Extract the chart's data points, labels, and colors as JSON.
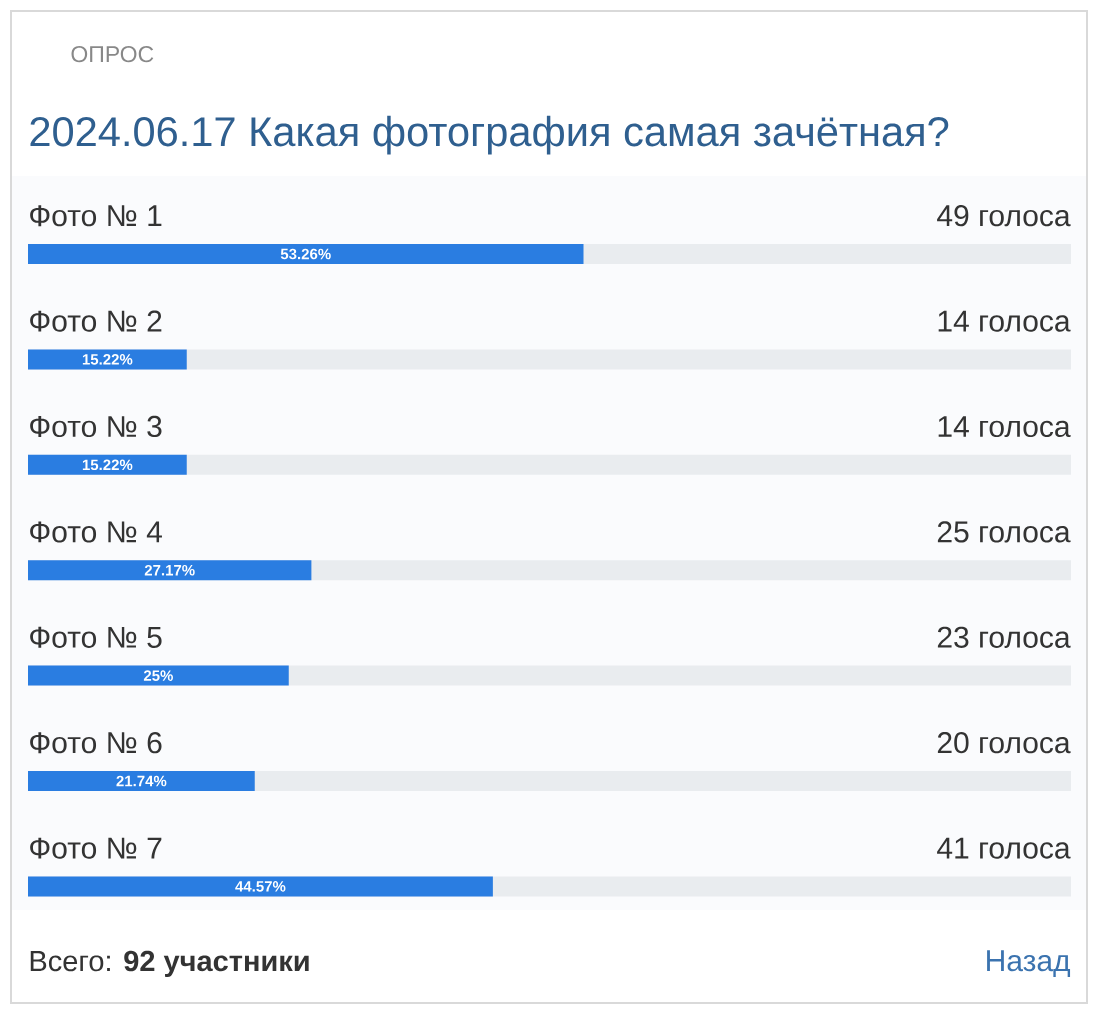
{
  "chart_data": {
    "type": "bar",
    "orientation": "horizontal",
    "title": "2024.06.17 Какая фотография самая зачётная?",
    "categories": [
      "Фото № 1",
      "Фото № 2",
      "Фото № 3",
      "Фото № 4",
      "Фото № 5",
      "Фото № 6",
      "Фото № 7"
    ],
    "values": [
      53.26,
      15.22,
      15.22,
      27.17,
      25,
      21.74,
      44.57
    ],
    "value_labels": [
      "53.26%",
      "15.22%",
      "15.22%",
      "27.17%",
      "25%",
      "21.74%",
      "44.57%"
    ],
    "color": "#2a7de1",
    "xlim": [
      0,
      100
    ],
    "tick_labels": "y",
    "annotations": [
      "ОПРОС",
      "49 голоса",
      "14 голоса",
      "14 голоса",
      "25 голоса",
      "23 голоса",
      "20 голоса",
      "41 голоса",
      "Всего: **92 участники**",
      "Назад"
    ]
  }
}
